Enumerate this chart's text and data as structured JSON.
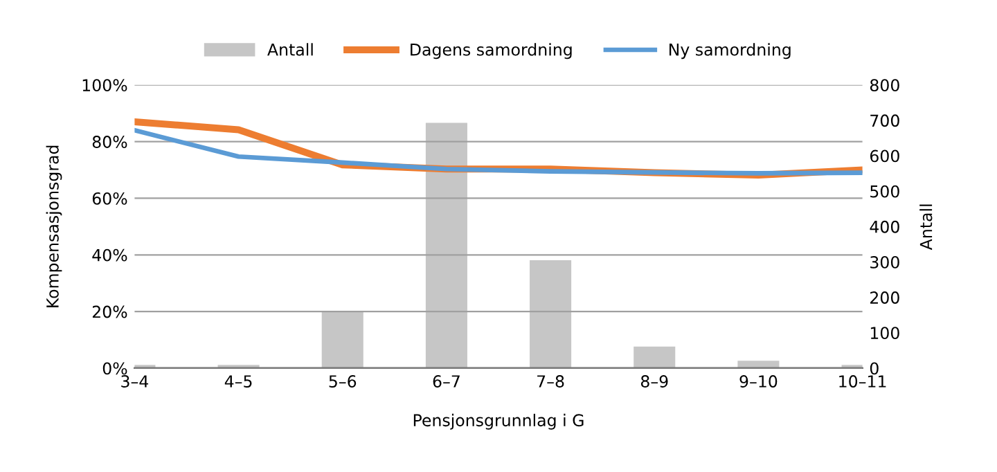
{
  "chart_data": {
    "type": "bar",
    "xlabel": "Pensjonsgrunnlag i G",
    "ylabel": "Kompensasjonsgrad",
    "y2label": "Antall",
    "categories": [
      "3–4",
      "4–5",
      "5–6",
      "6–7",
      "7–8",
      "8–9",
      "9–10",
      "10–11"
    ],
    "series": [
      {
        "name": "Antall",
        "axis": "y2",
        "color": "#c6c6c6",
        "values": [
          9,
          9,
          161,
          693,
          305,
          61,
          21,
          9
        ]
      },
      {
        "name": "Dagens samordning",
        "type": "line",
        "color": "#ed7d31",
        "values": [
          87,
          84.2,
          71.8,
          70.3,
          70.3,
          69,
          68.2,
          70
        ]
      },
      {
        "name": "Ny samordning",
        "type": "line",
        "color": "#5b9bd5",
        "values": [
          84,
          74.7,
          72.6,
          70.3,
          69.5,
          69.1,
          68.8,
          69
        ]
      }
    ],
    "ylim": [
      0,
      100
    ],
    "yticks": [
      {
        "value": 0,
        "label": "0%"
      },
      {
        "value": 20,
        "label": "20%"
      },
      {
        "value": 40,
        "label": "40%"
      },
      {
        "value": 60,
        "label": "60%"
      },
      {
        "value": 80,
        "label": "80%"
      },
      {
        "value": 100,
        "label": "100%"
      }
    ],
    "y2lim": [
      0,
      800
    ],
    "y2ticks": [
      0,
      100,
      200,
      300,
      400,
      500,
      600,
      700,
      800
    ],
    "grid": "y",
    "legend": "top"
  }
}
